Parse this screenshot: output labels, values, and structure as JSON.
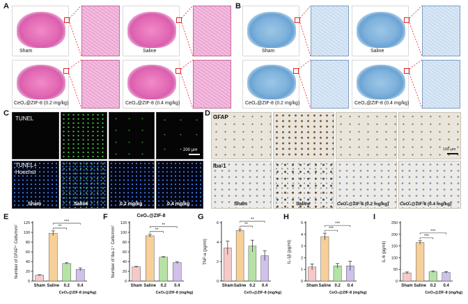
{
  "panels": {
    "A": {
      "label": "A",
      "tiles": [
        "Sham",
        "Saline",
        "CeO₂@ZIF-8 (0.2 mg/kg)",
        "CeO₂@ZIF-8 (0.4 mg/kg)"
      ]
    },
    "B": {
      "label": "B",
      "tiles": [
        "Sham",
        "Saline",
        "CeO₂@ZIF-8 (0.2 mg/kg)",
        "CeO₂@ZIF-8 (0.4 mg/kg)"
      ]
    },
    "C": {
      "label": "C",
      "row1": "TUNEL",
      "row2_line1": "TUNEL+",
      "row2_line2": "Hoechst",
      "scalebar": "200 μm",
      "groups": [
        "Sham",
        "Saline",
        "0.2 mg/kg",
        "0.4 mg/kg"
      ]
    },
    "D": {
      "label": "D",
      "row1": "GFAP",
      "row2": "Iba-1",
      "scalebar": "100 μm",
      "groups": [
        "Sham",
        "Saline",
        "CeO₂@ZIF-8 (0.2 mg/kg)",
        "CeO₂@ZIF-8 (0.4 mg/kg)"
      ]
    }
  },
  "chart_data": [
    {
      "panel": "E",
      "type": "bar",
      "ylabel": "Number of GFAP⁺ Cells/mm²",
      "categories": [
        "Sham",
        "Saline",
        "0.2",
        "0.4"
      ],
      "xgroup_label": "CeO₂@ZIF-8 (mg/kg)",
      "ylim": [
        0,
        120
      ],
      "yticks": [
        0,
        20,
        40,
        60,
        80,
        100,
        120
      ],
      "values": [
        12,
        98,
        36,
        24
      ],
      "errors": [
        1,
        5,
        1.5,
        3
      ],
      "colors": [
        "#f6c9c9",
        "#f7cf99",
        "#b7e2a6",
        "#cfc1ea"
      ],
      "sig": [
        {
          "from": 1,
          "to": 2,
          "label": "**"
        },
        {
          "from": 1,
          "to": 3,
          "label": "***"
        }
      ]
    },
    {
      "panel": "F",
      "type": "bar",
      "title": "CeO₂@ZIF-8",
      "ylabel": "Number of Iba-1⁺ Cells/mm²",
      "categories": [
        "Sham",
        "Saline",
        "0.2",
        "0.4"
      ],
      "xgroup_label": "CeO₂@ZIF-8 (mg/kg)",
      "ylim": [
        0,
        120
      ],
      "yticks": [
        0,
        20,
        40,
        60,
        80,
        100,
        120
      ],
      "values": [
        29,
        93,
        49,
        38
      ],
      "errors": [
        1,
        3,
        1.2,
        2
      ],
      "colors": [
        "#f6c9c9",
        "#f7cf99",
        "#b7e2a6",
        "#cfc1ea"
      ],
      "sig": [
        {
          "from": 1,
          "to": 2,
          "label": "**"
        },
        {
          "from": 1,
          "to": 3,
          "label": "**"
        }
      ]
    },
    {
      "panel": "G",
      "type": "bar",
      "ylabel": "TNF-α (pg/ml)",
      "categories": [
        "Sham",
        "Saline",
        "0.2",
        "0.4"
      ],
      "xgroup_label": "CeO₂@ZIF-8 (mg/kg)",
      "ylim": [
        0,
        6
      ],
      "yticks": [
        0,
        2,
        4,
        6
      ],
      "values": [
        3.4,
        5.2,
        3.6,
        2.6
      ],
      "errors": [
        0.7,
        0.15,
        0.6,
        0.5
      ],
      "colors": [
        "#f6c9c9",
        "#f7cf99",
        "#b7e2a6",
        "#cfc1ea"
      ],
      "sig": [
        {
          "from": 1,
          "to": 2,
          "label": "**"
        },
        {
          "from": 1,
          "to": 3,
          "label": "**"
        }
      ]
    },
    {
      "panel": "H",
      "type": "bar",
      "ylabel": "IL-1β (pg/ml)",
      "categories": [
        "Sham",
        "Saline",
        "0.2",
        "0.4"
      ],
      "xgroup_label": "CeO₂@ZIF-8 (mg/kg)",
      "ylim": [
        0,
        5
      ],
      "yticks": [
        0,
        1,
        2,
        3,
        4,
        5
      ],
      "values": [
        1.2,
        3.8,
        1.3,
        1.3
      ],
      "errors": [
        0.25,
        0.3,
        0.2,
        0.4
      ],
      "colors": [
        "#f6c9c9",
        "#f7cf99",
        "#b7e2a6",
        "#cfc1ea"
      ],
      "sig": [
        {
          "from": 1,
          "to": 2,
          "label": "***"
        },
        {
          "from": 1,
          "to": 3,
          "label": "***"
        }
      ]
    },
    {
      "panel": "I",
      "type": "bar",
      "ylabel": "IL-6 (pg/ml)",
      "categories": [
        "Sham",
        "Saline",
        "0.2",
        "0.4"
      ],
      "xgroup_label": "CeO₂@ZIF-8 (mg/kg)",
      "ylim": [
        0,
        250
      ],
      "yticks": [
        0,
        50,
        100,
        150,
        200,
        250
      ],
      "values": [
        35,
        165,
        40,
        37
      ],
      "errors": [
        4,
        8,
        3,
        3
      ],
      "colors": [
        "#f6c9c9",
        "#f7cf99",
        "#b7e2a6",
        "#cfc1ea"
      ],
      "sig": [
        {
          "from": 1,
          "to": 2,
          "label": "***"
        },
        {
          "from": 1,
          "to": 3,
          "label": "***"
        }
      ]
    }
  ]
}
